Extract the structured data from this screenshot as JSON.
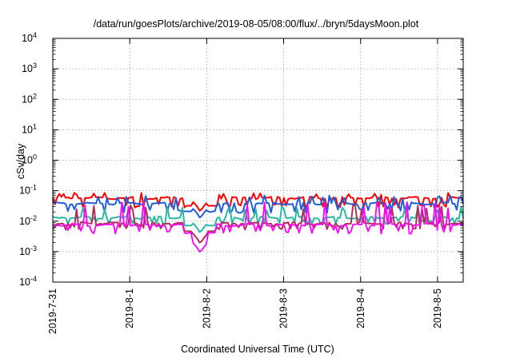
{
  "chart_data": {
    "type": "line",
    "title": "/data/run/goesPlots/archive/2019-08-05/08:00/flux/../bryn/5daysMoon.plot",
    "xlabel": "Coordinated Universal Time (UTC)",
    "ylabel": "cSv/day",
    "y_scale": "log",
    "ylim": [
      0.0001,
      10000
    ],
    "xlim": [
      "2019-07-31T00:00",
      "2019-08-05T08:00"
    ],
    "grid": true,
    "legend": "none",
    "x_tick_labels": [
      "2019-7-31",
      "2019-8-1",
      "2019-8-2",
      "2019-8-3",
      "2019-8-4",
      "2019-8-5"
    ],
    "y_ticks": [
      {
        "base": "10",
        "exp": "-4"
      },
      {
        "base": "10",
        "exp": "-3"
      },
      {
        "base": "10",
        "exp": "-2"
      },
      {
        "base": "10",
        "exp": "-1"
      },
      {
        "base": "10",
        "exp": "0"
      },
      {
        "base": "10",
        "exp": "1"
      },
      {
        "base": "10",
        "exp": "2"
      },
      {
        "base": "10",
        "exp": "3"
      },
      {
        "base": "10",
        "exp": "4"
      }
    ],
    "series": [
      {
        "color": "#ff0000",
        "baseline": 0.058,
        "dip_low": 0.032,
        "spike_high": 0.085,
        "dip_date": "2019-08-01T22:00",
        "dip_value": 0.02
      },
      {
        "color": "#1f5fd8",
        "baseline": 0.038,
        "dip_low": 0.022,
        "spike_high": 0.07,
        "dip_date": "2019-08-01T22:00",
        "dip_value": 0.012
      },
      {
        "color": "#2ab8a0",
        "baseline": 0.013,
        "dip_low": 0.009,
        "spike_high": 0.03,
        "dip_date": "2019-08-01T22:00",
        "dip_value": 0.004
      },
      {
        "color": "#b0305a",
        "baseline": 0.0085,
        "dip_low": 0.006,
        "spike_high": 0.035,
        "dip_date": "2019-08-01T22:00",
        "dip_value": 0.0018
      },
      {
        "color": "#ff00ff",
        "baseline": 0.0075,
        "dip_low": 0.0045,
        "spike_high": 0.045,
        "dip_date": "2019-08-01T22:00",
        "dip_value": 0.0009
      }
    ]
  }
}
